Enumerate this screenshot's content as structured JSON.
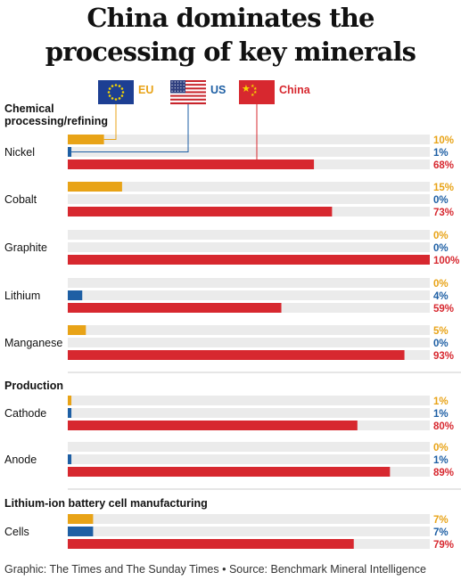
{
  "title_line1": "China dominates the",
  "title_line2": "processing of key minerals",
  "legend": [
    {
      "name": "EU",
      "color": "#e8a317",
      "flag": "eu-flag-icon"
    },
    {
      "name": "US",
      "color": "#1e5fa4",
      "flag": "us-flag-icon"
    },
    {
      "name": "China",
      "color": "#d7282f",
      "flag": "china-flag-icon"
    }
  ],
  "colors": {
    "EU": "#e8a317",
    "US": "#1e5fa4",
    "China": "#d7282f",
    "track": "#ebebeb",
    "divider": "#cccccc"
  },
  "footer": "Graphic: The Times and The Sunday Times • Source: Benchmark Mineral Intelligence",
  "chart_data": {
    "type": "bar",
    "orientation": "horizontal",
    "series": [
      {
        "name": "EU"
      },
      {
        "name": "US"
      },
      {
        "name": "China"
      }
    ],
    "value_suffix": "%",
    "xlim": [
      0,
      100
    ],
    "sections": [
      {
        "title_lines": [
          "Chemical",
          "processing/refining"
        ],
        "categories": [
          {
            "name": "Nickel",
            "values": [
              10,
              1,
              68
            ]
          },
          {
            "name": "Cobalt",
            "values": [
              15,
              0,
              73
            ]
          },
          {
            "name": "Graphite",
            "values": [
              0,
              0,
              100
            ]
          },
          {
            "name": "Lithium",
            "values": [
              0,
              4,
              59
            ]
          },
          {
            "name": "Manganese",
            "values": [
              5,
              0,
              93
            ]
          }
        ]
      },
      {
        "title_lines": [
          "Production"
        ],
        "categories": [
          {
            "name": "Cathode",
            "values": [
              1,
              1,
              80
            ]
          },
          {
            "name": "Anode",
            "values": [
              0,
              1,
              89
            ]
          }
        ]
      },
      {
        "title_lines": [
          "Lithium-ion battery cell manufacturing"
        ],
        "categories": [
          {
            "name": "Cells",
            "values": [
              7,
              7,
              79
            ]
          }
        ]
      }
    ]
  }
}
